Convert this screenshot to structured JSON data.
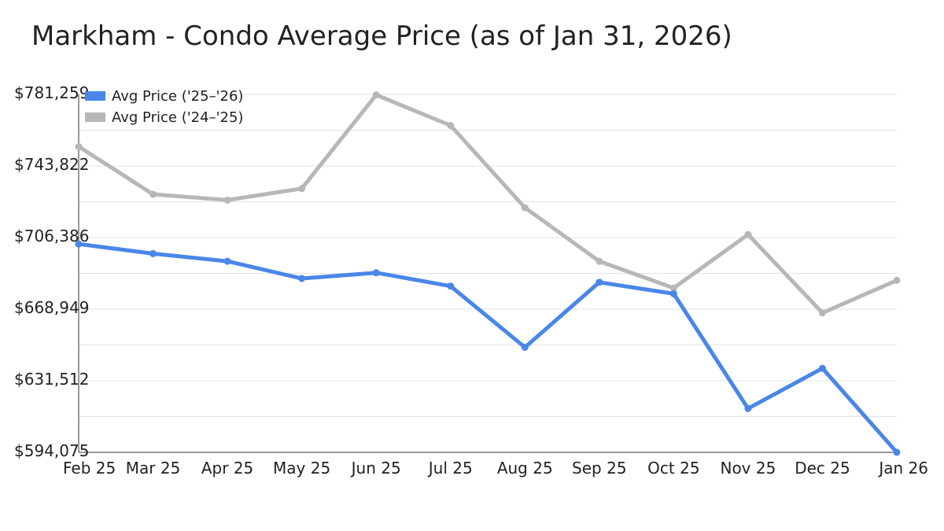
{
  "chart_data": {
    "type": "line",
    "title": "Markham - Condo Average Price (as of Jan 31, 2026)",
    "xlabel": "",
    "ylabel": "",
    "categories": [
      "Feb 25",
      "Mar 25",
      "Apr 25",
      "May 25",
      "Jun 25",
      "Jul 25",
      "Aug 25",
      "Sep 25",
      "Oct 25",
      "Nov 25",
      "Dec 25",
      "Jan 26"
    ],
    "ylim": [
      594075,
      781259
    ],
    "y_tick_labels": [
      "$781,259",
      "$743,822",
      "$706,386",
      "$668,949",
      "$631,512",
      "$594,075"
    ],
    "y_tick_values": [
      781259,
      743822,
      706386,
      668949,
      631512,
      594075
    ],
    "grid": true,
    "legend_position": "top-left",
    "series": [
      {
        "name": "Avg Price ('25–'26)",
        "color": "#4a86e8",
        "values": [
          703000,
          698000,
          694000,
          685000,
          688000,
          681000,
          649000,
          683000,
          677000,
          617000,
          638000,
          594075
        ]
      },
      {
        "name": "Avg Price ('24–'25)",
        "color": "#b7b7b7",
        "values": [
          754000,
          729000,
          726000,
          732000,
          781000,
          765000,
          722000,
          694000,
          680000,
          708000,
          667000,
          684000
        ]
      }
    ]
  }
}
